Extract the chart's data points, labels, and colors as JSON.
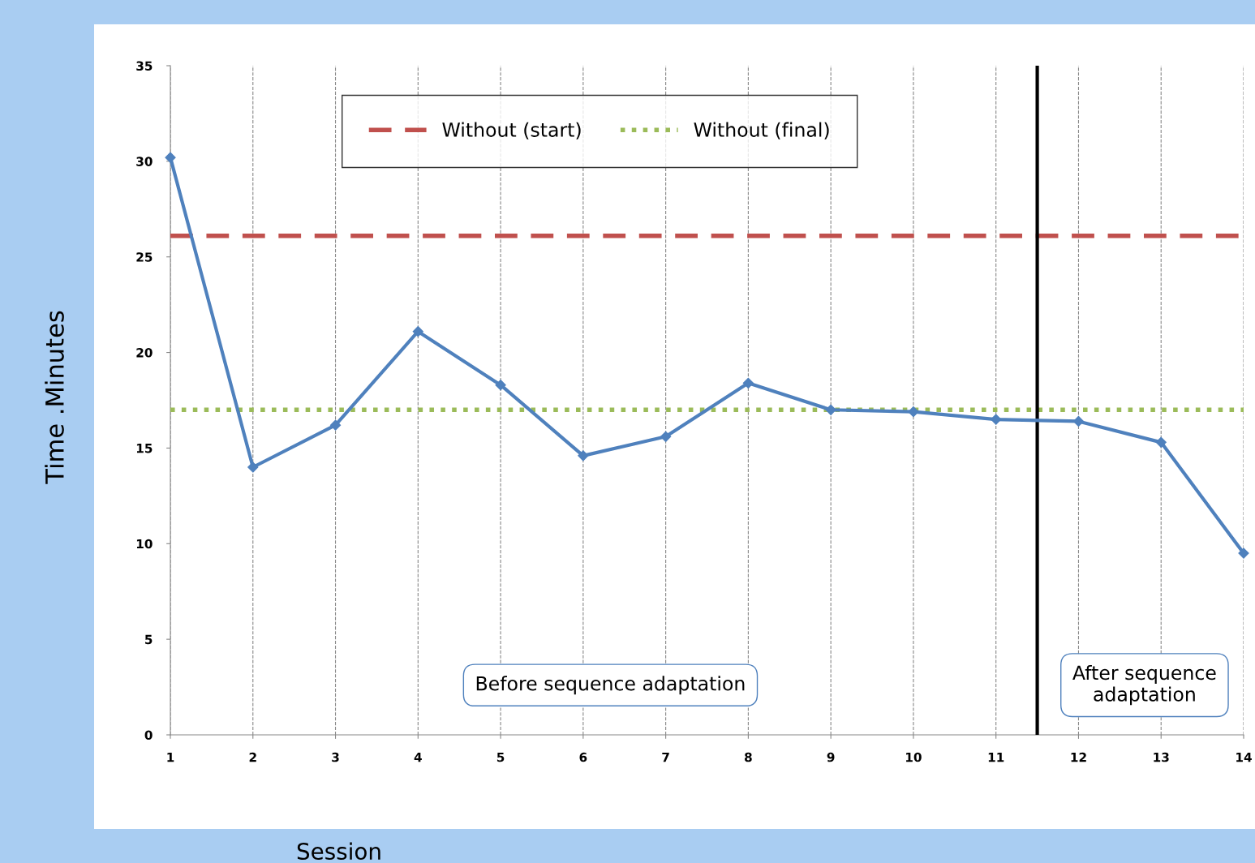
{
  "chart_data": {
    "type": "line",
    "xlabel": "Session",
    "ylabel": "Time .Minutes",
    "x": [
      1,
      2,
      3,
      4,
      5,
      6,
      7,
      8,
      9,
      10,
      11,
      12,
      13,
      14
    ],
    "series": [
      {
        "color": "#4f81bd",
        "values": [
          30.2,
          14.0,
          16.2,
          21.1,
          18.3,
          14.6,
          15.6,
          18.4,
          17.0,
          16.9,
          16.5,
          16.4,
          15.3,
          9.5
        ]
      }
    ],
    "marker": "diamond",
    "line_style": "solid",
    "xlim": [
      1,
      14
    ],
    "xticks": [
      1,
      2,
      3,
      4,
      5,
      6,
      7,
      8,
      9,
      10,
      11,
      12,
      13,
      14
    ],
    "ylim": [
      0,
      35
    ],
    "yticks": [
      0,
      5,
      10,
      15,
      20,
      25,
      30,
      35
    ],
    "grid": "x",
    "legend": "top",
    "ref_lines": [
      {
        "axis": "y",
        "value": 26.1,
        "label": "Without (start)",
        "color": "#c0504d",
        "line_style": "dashed"
      },
      {
        "axis": "y",
        "value": 17.0,
        "label": "Without (final)",
        "color": "#9bbb59",
        "line_style": "dotted"
      },
      {
        "axis": "x",
        "value": 11.5,
        "label": null,
        "color": "#000000",
        "line_style": "solid"
      }
    ],
    "annotations": [
      "Before sequence adaptation",
      "After sequence\nadaptation"
    ]
  }
}
